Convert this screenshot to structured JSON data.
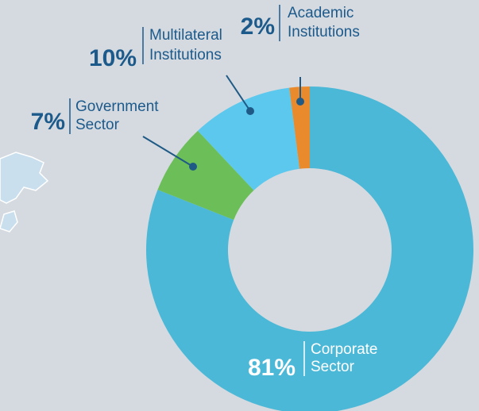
{
  "chart_data": {
    "type": "donut",
    "categories": [
      "Corporate Sector",
      "Government Sector",
      "Multilateral Institutions",
      "Academic Institutions"
    ],
    "values": [
      81,
      7,
      10,
      2
    ],
    "value_labels": [
      "81%",
      "7%",
      "10%",
      "2%"
    ],
    "colors": [
      "#4bb8d8",
      "#6cbe58",
      "#5cc8ee",
      "#e98a2c"
    ]
  }
}
